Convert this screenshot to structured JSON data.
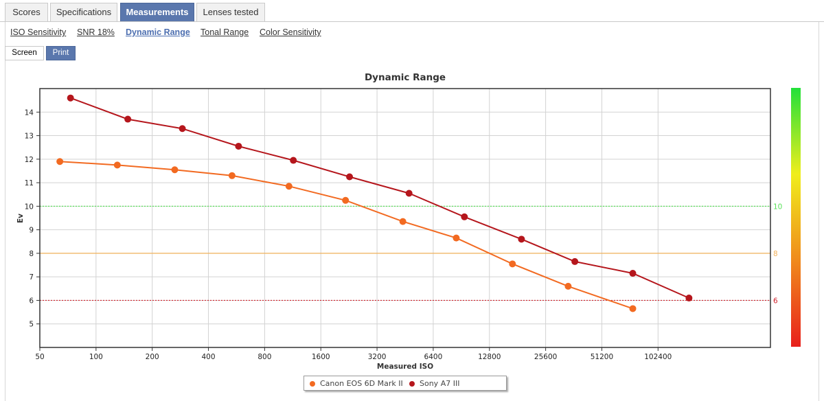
{
  "tabs": [
    {
      "label": "Scores",
      "active": false
    },
    {
      "label": "Specifications",
      "active": false
    },
    {
      "label": "Measurements",
      "active": true
    },
    {
      "label": "Lenses tested",
      "active": false
    }
  ],
  "subtabs": [
    {
      "label": "ISO Sensitivity",
      "active": false
    },
    {
      "label": "SNR 18%",
      "active": false
    },
    {
      "label": "Dynamic Range",
      "active": true
    },
    {
      "label": "Tonal Range",
      "active": false
    },
    {
      "label": "Color Sensitivity",
      "active": false
    }
  ],
  "view_toggle": {
    "screen_label": "Screen",
    "print_label": "Print",
    "selected": "Print"
  },
  "chart_data": {
    "type": "line",
    "title": "Dynamic Range",
    "xlabel": "Measured ISO",
    "ylabel": "Ev",
    "x_scale": "log2",
    "xlim": [
      50,
      409600
    ],
    "ylim": [
      4,
      15
    ],
    "x_ticks": [
      "50",
      "100",
      "200",
      "400",
      "800",
      "1600",
      "3200",
      "6400",
      "12800",
      "25600",
      "51200",
      "102400"
    ],
    "y_ticks": [
      5,
      6,
      7,
      8,
      9,
      10,
      11,
      12,
      13,
      14
    ],
    "grid": true,
    "legend_position": "bottom-center",
    "series": [
      {
        "name": "Canon EOS 6D Mark II",
        "color": "#f26a21",
        "points": [
          [
            64,
            11.9
          ],
          [
            130,
            11.75
          ],
          [
            264,
            11.55
          ],
          [
            535,
            11.3
          ],
          [
            1080,
            10.85
          ],
          [
            2170,
            10.25
          ],
          [
            4400,
            9.35
          ],
          [
            8500,
            8.65
          ],
          [
            17000,
            7.55
          ],
          [
            33800,
            6.6
          ],
          [
            75000,
            5.65
          ]
        ]
      },
      {
        "name": "Sony A7 III",
        "color": "#b5161c",
        "points": [
          [
            73,
            14.6
          ],
          [
            148,
            13.7
          ],
          [
            290,
            13.3
          ],
          [
            580,
            12.55
          ],
          [
            1140,
            11.95
          ],
          [
            2280,
            11.25
          ],
          [
            4750,
            10.55
          ],
          [
            9400,
            9.55
          ],
          [
            19000,
            8.6
          ],
          [
            36700,
            7.65
          ],
          [
            75000,
            7.15
          ],
          [
            150000,
            6.1
          ]
        ]
      }
    ],
    "reference_lines": [
      {
        "value": 10,
        "label": "10",
        "color": "#5ae25a",
        "style": "dotted"
      },
      {
        "value": 8,
        "label": "8",
        "color": "#f2b15a",
        "style": "solid"
      },
      {
        "value": 6,
        "label": "6",
        "color": "#d0202a",
        "style": "dotted"
      }
    ],
    "color_scale": {
      "colors": [
        "#22e03a",
        "#f0ee1c",
        "#f08a1c",
        "#e8201c"
      ]
    }
  }
}
